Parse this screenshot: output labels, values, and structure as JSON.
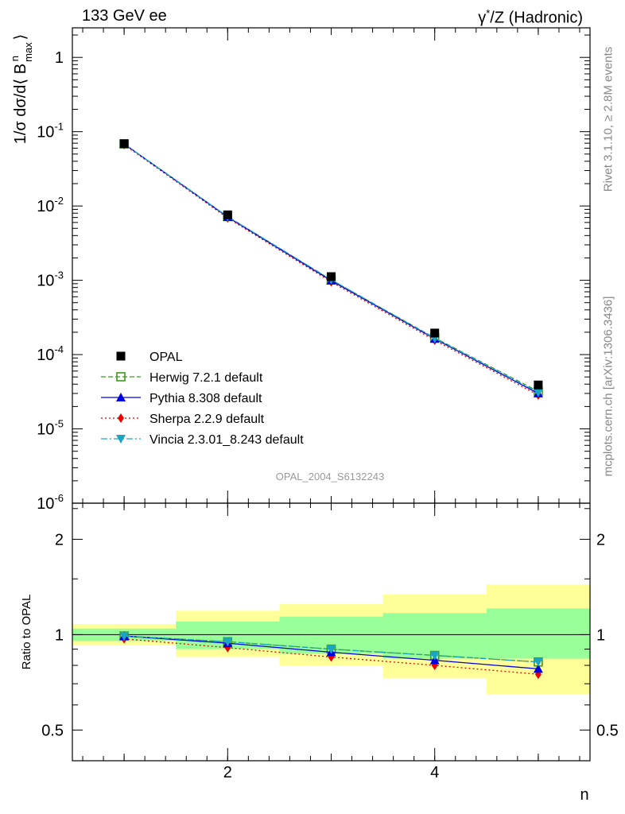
{
  "header": {
    "energy_label": "133 GeV ee",
    "process_label": "γ*/Z (Hadronic)"
  },
  "side_text": {
    "rivet": "Rivet 3.1.10, ≥ 2.8M events",
    "mcplots": "mcplots.cern.ch [arXiv:1306.3436]"
  },
  "analysis_id": "OPAL_2004_S6132243",
  "colors": {
    "data": "#000000",
    "herwig": "#3a9a1e",
    "pythia": "#0000e0",
    "sherpa": "#ee0000",
    "vincia": "#1aa6c0",
    "band_inner": "#99ff99",
    "band_outer": "#ffff99"
  },
  "chart_data": [
    {
      "type": "scatter",
      "panel": "main",
      "ylabel": "1/σ dσ/d⟨ B^n_max ⟩",
      "yscale": "log",
      "ylim": [
        1e-06,
        2.5
      ],
      "xlim": [
        0.5,
        5.5
      ],
      "yticks": [
        "1",
        "10^-1",
        "10^-2",
        "10^-3",
        "10^-4",
        "10^-5",
        "10^-6"
      ],
      "x": [
        1,
        2,
        3,
        4,
        5
      ],
      "series": [
        {
          "name": "OPAL",
          "key": "data",
          "marker": "square-filled",
          "values": [
            0.069,
            0.0076,
            0.00112,
            0.000195,
            3.9e-05
          ]
        },
        {
          "name": "Herwig 7.2.1 default",
          "key": "herwig",
          "marker": "square-open",
          "line": "dashed",
          "values": [
            0.0685,
            0.0072,
            0.00101,
            0.000168,
            3.2e-05
          ]
        },
        {
          "name": "Pythia 8.308 default",
          "key": "pythia",
          "marker": "triangle-up",
          "line": "solid",
          "values": [
            0.0683,
            0.0071,
            0.00099,
            0.000163,
            3e-05
          ]
        },
        {
          "name": "Sherpa 2.2.9 default",
          "key": "sherpa",
          "marker": "diamond",
          "line": "dotted",
          "values": [
            0.0668,
            0.0069,
            0.00095,
            0.000156,
            2.85e-05
          ]
        },
        {
          "name": "Vincia 2.3.01_8.243 default",
          "key": "vincia",
          "marker": "triangle-down",
          "line": "dashdot",
          "values": [
            0.0685,
            0.0072,
            0.00102,
            0.000166,
            3.1e-05
          ]
        }
      ],
      "legend_position": "lower-left"
    },
    {
      "type": "line",
      "panel": "ratio",
      "xlabel": "n",
      "ylabel": "Ratio to OPAL",
      "yticks": [
        "0.5",
        "1",
        "2"
      ],
      "xticks": [
        "2",
        "4"
      ],
      "x": [
        1,
        2,
        3,
        4,
        5
      ],
      "series": [
        {
          "name": "Herwig 7.2.1 default",
          "key": "herwig",
          "values": [
            0.99,
            0.95,
            0.9,
            0.86,
            0.82
          ]
        },
        {
          "name": "Pythia 8.308 default",
          "key": "pythia",
          "values": [
            0.99,
            0.94,
            0.88,
            0.83,
            0.78
          ]
        },
        {
          "name": "Sherpa 2.2.9 default",
          "key": "sherpa",
          "values": [
            0.97,
            0.91,
            0.85,
            0.8,
            0.75
          ]
        },
        {
          "name": "Vincia 2.3.01_8.243 default",
          "key": "vincia",
          "values": [
            0.99,
            0.95,
            0.9,
            0.86,
            0.82
          ]
        }
      ],
      "bands": {
        "inner": [
          [
            0.955,
            1.045
          ],
          [
            0.9,
            1.1
          ],
          [
            0.87,
            1.14
          ],
          [
            0.84,
            1.17
          ],
          [
            0.84,
            1.21
          ]
        ],
        "outer": [
          [
            0.925,
            1.08
          ],
          [
            0.85,
            1.19
          ],
          [
            0.8,
            1.25
          ],
          [
            0.73,
            1.34
          ],
          [
            0.65,
            1.44
          ]
        ]
      }
    }
  ]
}
